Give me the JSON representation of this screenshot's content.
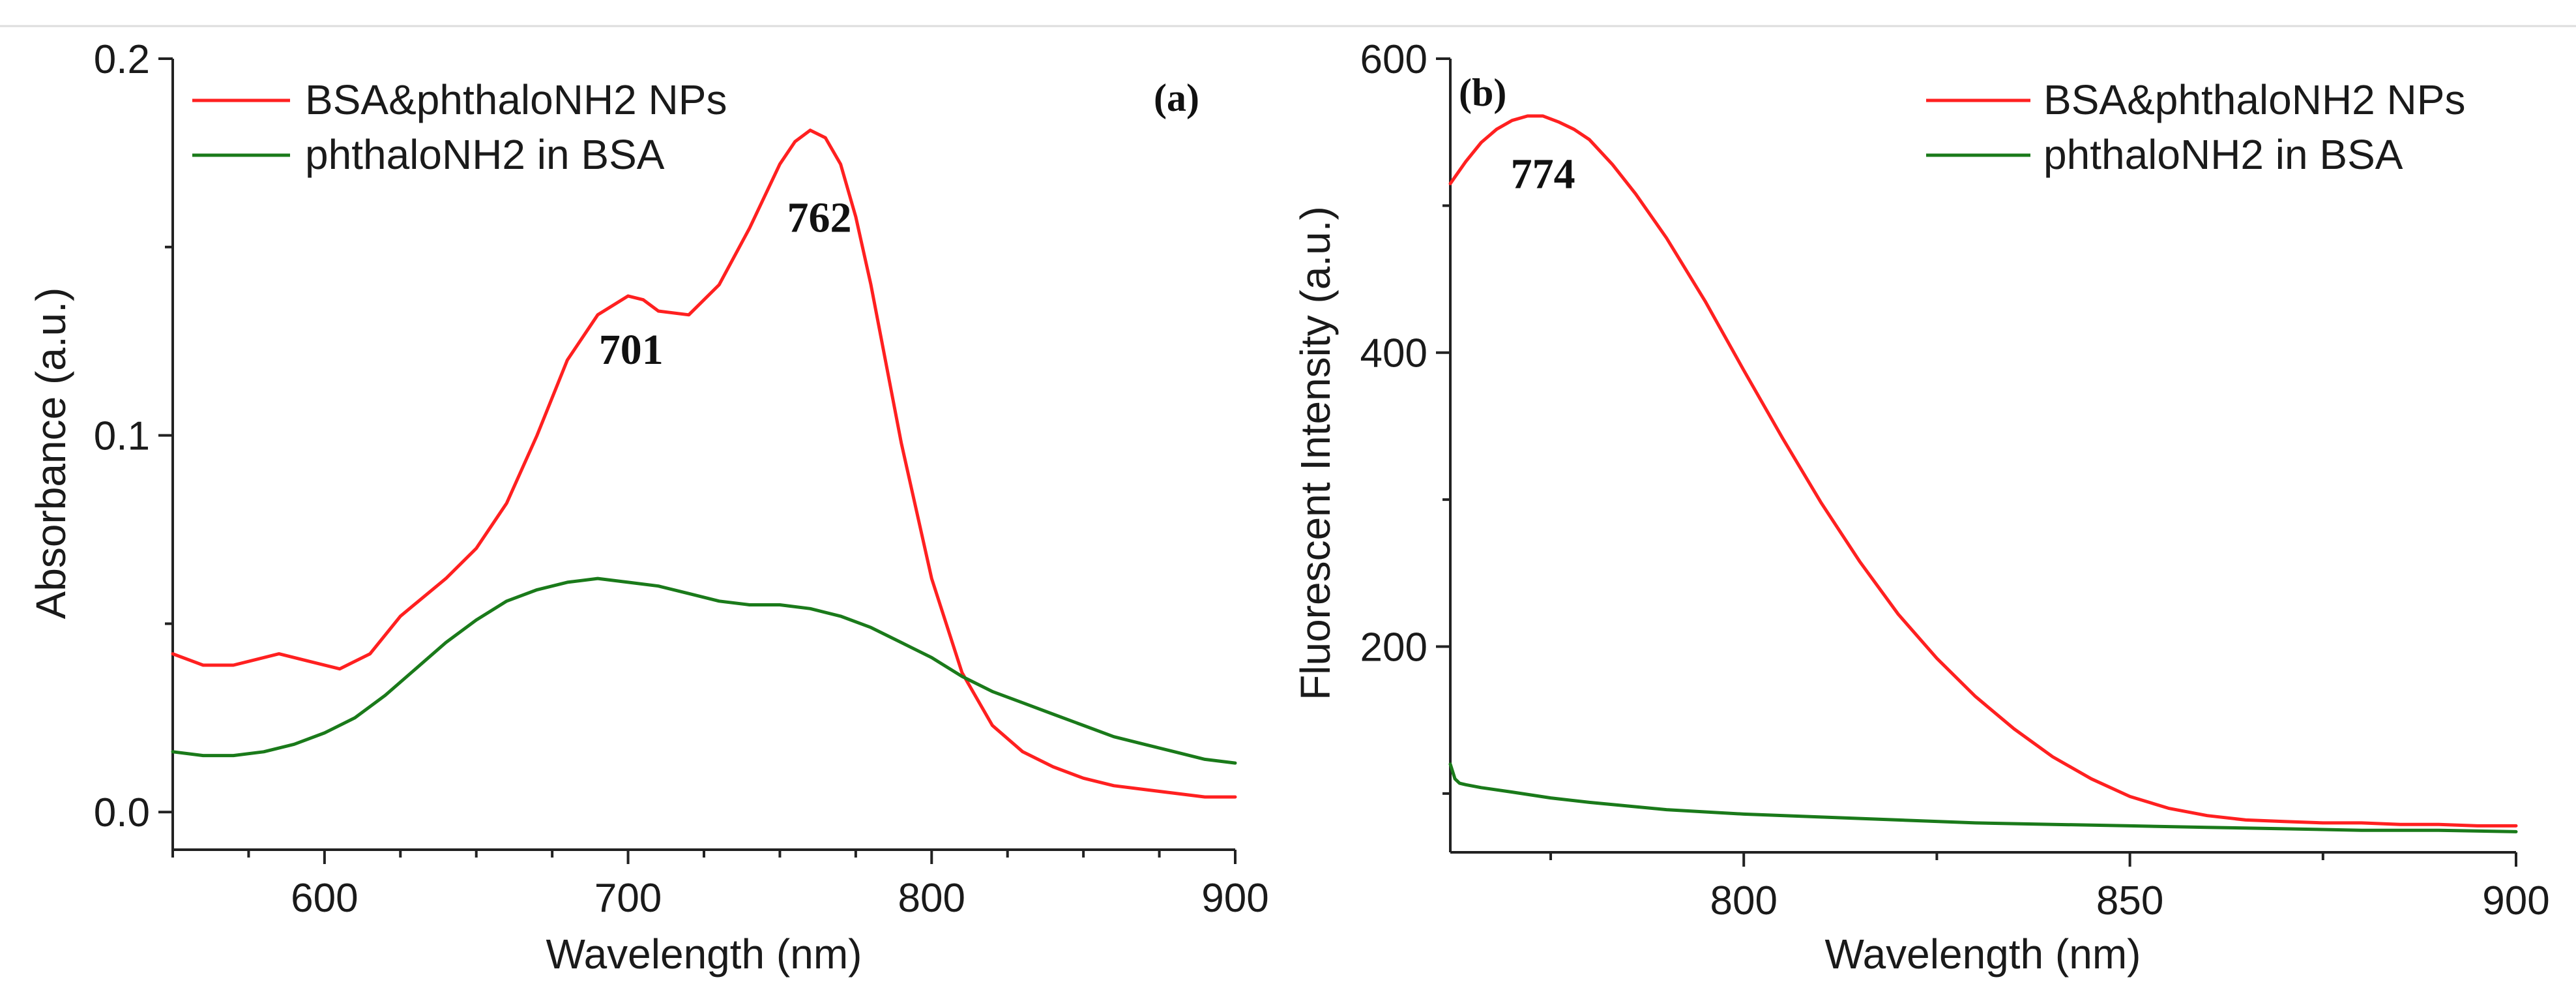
{
  "chart_data": [
    {
      "type": "line",
      "panel_label": "(a)",
      "xlabel": "Wavelength (nm)",
      "ylabel": "Absorbance (a.u.)",
      "xlim": [
        550,
        900
      ],
      "ylim": [
        -0.01,
        0.2
      ],
      "xticks": [
        600,
        700,
        800,
        900
      ],
      "yticks": [
        0.0,
        0.1,
        0.2
      ],
      "ytick_labels": [
        "0.0",
        "0.1",
        "0.2"
      ],
      "legend_position": "top-left",
      "series": [
        {
          "name": "BSA&phthaloNH2 NPs",
          "color": "#ff2020",
          "x": [
            550,
            560,
            570,
            585,
            595,
            605,
            615,
            625,
            640,
            650,
            660,
            670,
            680,
            690,
            700,
            705,
            710,
            720,
            730,
            740,
            750,
            755,
            760,
            765,
            770,
            775,
            780,
            790,
            800,
            810,
            820,
            830,
            840,
            850,
            860,
            870,
            880,
            890,
            900
          ],
          "y": [
            0.042,
            0.039,
            0.039,
            0.042,
            0.04,
            0.038,
            0.042,
            0.052,
            0.062,
            0.07,
            0.082,
            0.1,
            0.12,
            0.132,
            0.137,
            0.136,
            0.133,
            0.132,
            0.14,
            0.155,
            0.172,
            0.178,
            0.181,
            0.179,
            0.172,
            0.158,
            0.14,
            0.098,
            0.062,
            0.037,
            0.023,
            0.016,
            0.012,
            0.009,
            0.007,
            0.006,
            0.005,
            0.004,
            0.004
          ]
        },
        {
          "name": "phthaloNH2 in BSA",
          "color": "#1a7a1a",
          "x": [
            550,
            560,
            570,
            580,
            590,
            600,
            610,
            620,
            630,
            640,
            650,
            660,
            670,
            680,
            690,
            700,
            710,
            720,
            730,
            740,
            750,
            760,
            770,
            780,
            790,
            800,
            810,
            820,
            830,
            840,
            850,
            860,
            870,
            880,
            890,
            900
          ],
          "y": [
            0.016,
            0.015,
            0.015,
            0.016,
            0.018,
            0.021,
            0.025,
            0.031,
            0.038,
            0.045,
            0.051,
            0.056,
            0.059,
            0.061,
            0.062,
            0.061,
            0.06,
            0.058,
            0.056,
            0.055,
            0.055,
            0.054,
            0.052,
            0.049,
            0.045,
            0.041,
            0.036,
            0.032,
            0.029,
            0.026,
            0.023,
            0.02,
            0.018,
            0.016,
            0.014,
            0.013
          ]
        }
      ],
      "annotations": [
        {
          "text": "701",
          "x": 701,
          "y": 0.119
        },
        {
          "text": "762",
          "x": 763,
          "y": 0.154
        }
      ]
    },
    {
      "type": "line",
      "panel_label": "(b)",
      "xlabel": "Wavelength (nm)",
      "ylabel": "Fluorescent Intensity (a.u.)",
      "xlim": [
        762,
        900
      ],
      "ylim": [
        60,
        600
      ],
      "xticks": [
        800,
        850,
        900
      ],
      "yticks": [
        200,
        400,
        600
      ],
      "ytick_labels": [
        "200",
        "400",
        "600"
      ],
      "legend_position": "top-right",
      "series": [
        {
          "name": "BSA&phthaloNH2 NPs",
          "color": "#ff2020",
          "x": [
            762,
            764,
            766,
            768,
            770,
            772,
            774,
            776,
            778,
            780,
            783,
            786,
            790,
            795,
            800,
            805,
            810,
            815,
            820,
            825,
            830,
            835,
            840,
            845,
            850,
            855,
            860,
            865,
            870,
            875,
            880,
            885,
            890,
            895,
            900
          ],
          "y": [
            515,
            530,
            543,
            552,
            558,
            561,
            561,
            557,
            552,
            545,
            528,
            508,
            478,
            435,
            388,
            342,
            298,
            258,
            222,
            192,
            166,
            144,
            125,
            110,
            98,
            90,
            85,
            82,
            81,
            80,
            80,
            79,
            79,
            78,
            78
          ]
        },
        {
          "name": "phthaloNH2 in BSA",
          "color": "#1a7a1a",
          "x": [
            762,
            762.6,
            763.2,
            764,
            766,
            770,
            775,
            780,
            790,
            800,
            810,
            820,
            830,
            840,
            850,
            860,
            870,
            880,
            890,
            900
          ],
          "y": [
            120,
            110,
            107,
            106,
            104,
            101,
            97,
            94,
            89,
            86,
            84,
            82,
            80,
            79,
            78,
            77,
            76,
            75,
            75,
            74
          ]
        }
      ],
      "annotations": [
        {
          "text": "774",
          "x": 774,
          "y": 512
        }
      ]
    }
  ]
}
